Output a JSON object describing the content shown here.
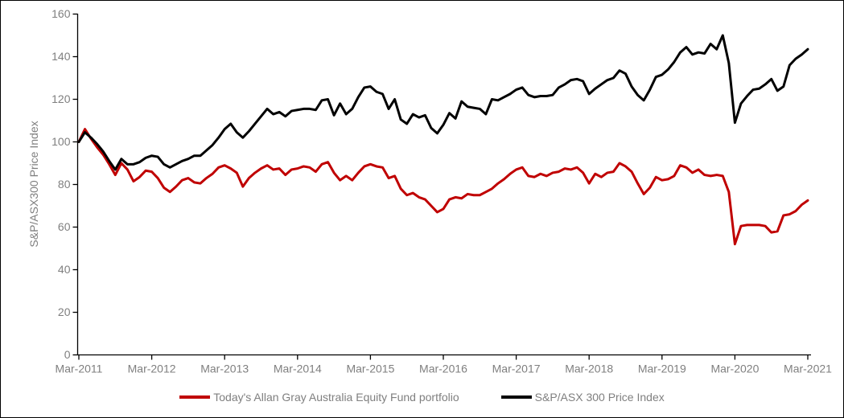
{
  "chart_data": {
    "type": "line",
    "title": "",
    "xlabel": "",
    "ylabel": "S&P/ASX300 Price Index",
    "ylim": [
      0,
      160
    ],
    "y_ticks": [
      0,
      20,
      40,
      60,
      80,
      100,
      120,
      140,
      160
    ],
    "x_tick_labels": [
      "Mar-2011",
      "Mar-2012",
      "Mar-2013",
      "Mar-2014",
      "Mar-2015",
      "Mar-2016",
      "Mar-2017",
      "Mar-2018",
      "Mar-2019",
      "Mar-2020",
      "Mar-2021"
    ],
    "x_frequency": "monthly",
    "x_range": [
      "Mar-2011",
      "Mar-2021"
    ],
    "grid": false,
    "legend_position": "bottom-center",
    "series": [
      {
        "name": "Today's Allan Gray Australia Equity Fund portfolio",
        "color": "#C00000",
        "values": [
          100,
          106,
          101.5,
          97.5,
          94,
          89.5,
          84.5,
          90,
          87,
          81.5,
          83.5,
          86.5,
          86,
          83,
          78.5,
          76.5,
          79,
          82,
          83,
          81,
          80.5,
          83,
          85,
          88,
          89,
          87.5,
          85.5,
          79,
          83,
          85.5,
          87.5,
          89,
          87,
          87.5,
          84.5,
          87,
          87.5,
          88.5,
          88,
          86,
          89.5,
          90.5,
          85.5,
          82,
          84,
          82,
          85.5,
          88.5,
          89.5,
          88.5,
          88,
          83,
          84,
          78,
          75,
          76,
          74,
          73,
          70,
          67,
          68.5,
          73,
          74,
          73.5,
          75.5,
          75,
          75,
          76.5,
          78,
          80.5,
          82.5,
          85,
          87,
          88,
          84,
          83.5,
          85,
          84,
          85.5,
          86,
          87.5,
          87,
          88,
          85.5,
          80.5,
          85,
          83.5,
          85.5,
          86,
          90,
          88.5,
          86,
          80.5,
          75.5,
          78.5,
          83.5,
          82,
          82.5,
          84,
          89,
          88,
          85.5,
          87,
          84.5,
          84,
          84.5,
          84,
          76.5,
          52,
          60.5,
          61,
          61,
          61,
          60.5,
          57.5,
          58,
          65.5,
          66,
          67.5,
          70.5,
          72.5
        ]
      },
      {
        "name": "S&P/ASX 300 Price Index",
        "color": "#000000",
        "values": [
          100,
          104.5,
          102,
          99,
          95.5,
          91,
          87,
          92,
          89.5,
          89.5,
          90.5,
          92.5,
          93.5,
          93,
          89.5,
          88,
          89.5,
          91,
          92,
          93.5,
          93.5,
          96,
          98.5,
          102,
          106,
          108.5,
          104.5,
          102,
          105,
          108.5,
          112,
          115.5,
          113,
          114,
          112,
          114.5,
          115,
          115.5,
          115.5,
          115,
          119.5,
          120,
          112.5,
          118,
          113,
          115.5,
          121,
          125.5,
          126,
          123.5,
          122.5,
          115.5,
          120,
          110.5,
          108.5,
          113,
          111.5,
          112.5,
          106.5,
          104,
          108,
          113.5,
          111,
          119,
          116.5,
          116,
          115.5,
          113,
          120,
          119.5,
          121,
          122.5,
          124.5,
          125.5,
          122,
          121,
          121.5,
          121.5,
          122,
          125.5,
          127,
          129,
          129.5,
          128.5,
          122.5,
          125,
          127,
          129,
          130,
          133.5,
          132,
          126,
          122,
          119.5,
          124.5,
          130.5,
          131.5,
          134,
          137.5,
          142,
          144.5,
          141,
          142,
          141.5,
          146,
          143.5,
          150,
          137,
          109,
          118,
          121.5,
          124.5,
          125,
          127,
          129.5,
          124,
          126,
          136,
          139,
          141,
          143.5
        ]
      }
    ]
  },
  "colors": {
    "axis": "#000000",
    "label_text": "#7F7F7F",
    "background": "#FFFFFF",
    "border": "#000000"
  }
}
